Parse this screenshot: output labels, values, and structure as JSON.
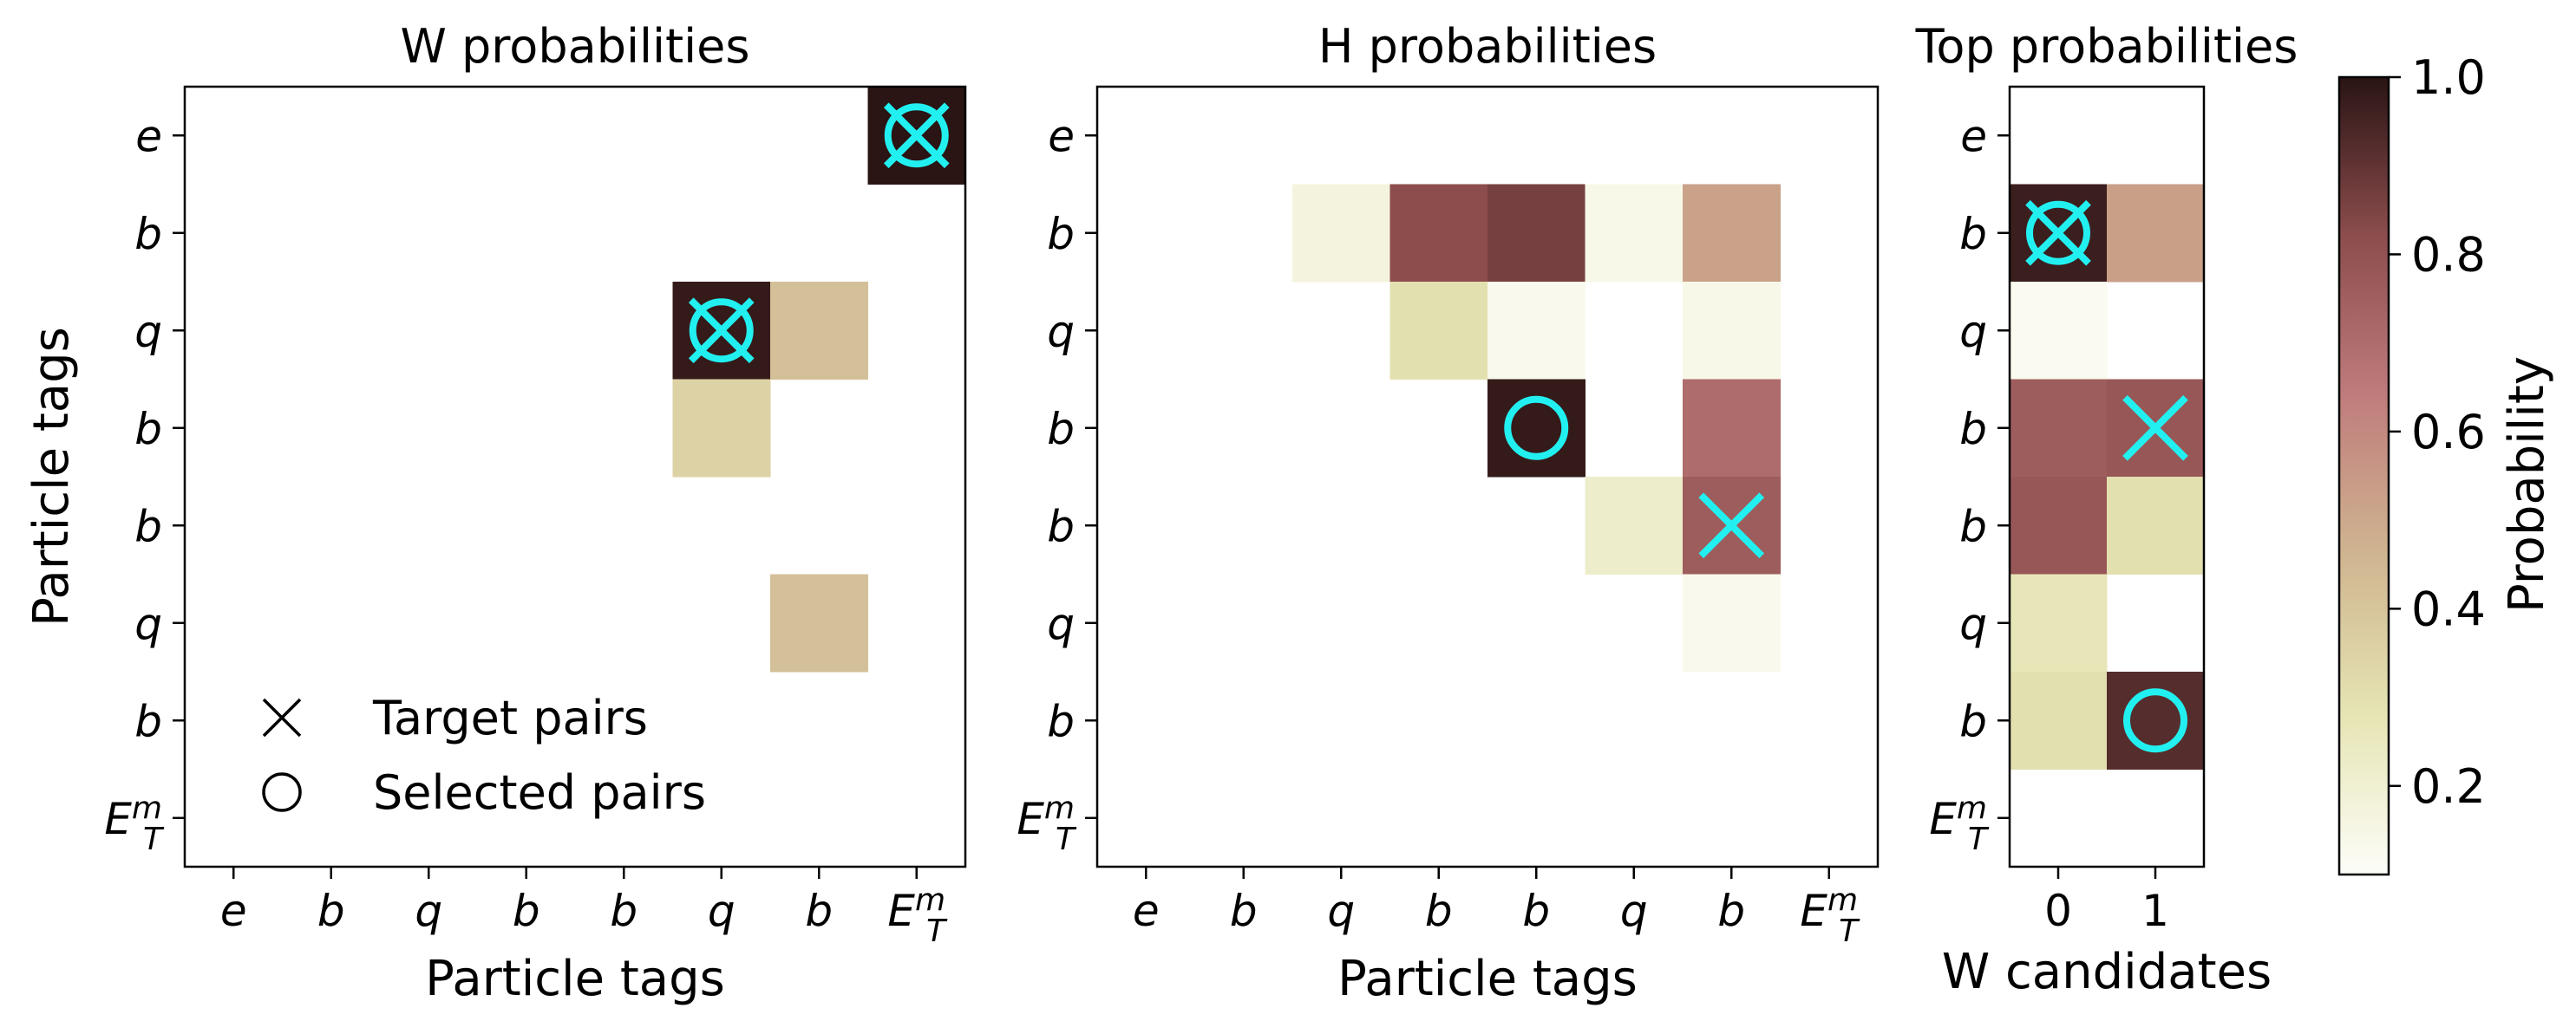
{
  "chart_data": [
    {
      "type": "heatmap",
      "title": "W probabilities",
      "xlabel": "Particle tags",
      "ylabel": "Particle tags",
      "x_tick_labels": [
        "e",
        "b",
        "q",
        "b",
        "b",
        "q",
        "b",
        "E_T^m"
      ],
      "y_tick_labels": [
        "e",
        "b",
        "q",
        "b",
        "b",
        "q",
        "b",
        "E_T^m"
      ],
      "cells": [
        {
          "row": 0,
          "col": 7,
          "value": 1.0
        },
        {
          "row": 2,
          "col": 5,
          "value": 0.98
        },
        {
          "row": 2,
          "col": 6,
          "value": 0.42
        },
        {
          "row": 3,
          "col": 5,
          "value": 0.35
        },
        {
          "row": 5,
          "col": 6,
          "value": 0.42
        }
      ],
      "target_pairs": [
        {
          "row": 0,
          "col": 7
        },
        {
          "row": 2,
          "col": 5
        }
      ],
      "selected_pairs": [
        {
          "row": 0,
          "col": 7
        },
        {
          "row": 2,
          "col": 5
        }
      ],
      "legend": {
        "position": "lower-left",
        "entries": [
          {
            "marker": "x",
            "label": "Target pairs"
          },
          {
            "marker": "o",
            "label": "Selected pairs"
          }
        ]
      }
    },
    {
      "type": "heatmap",
      "title": "H probabilities",
      "xlabel": "Particle tags",
      "ylabel": "",
      "x_tick_labels": [
        "e",
        "b",
        "q",
        "b",
        "b",
        "q",
        "b",
        "E_T^m"
      ],
      "y_tick_labels": [
        "e",
        "b",
        "q",
        "b",
        "b",
        "q",
        "b",
        "E_T^m"
      ],
      "cells": [
        {
          "row": 1,
          "col": 2,
          "value": 0.17
        },
        {
          "row": 1,
          "col": 3,
          "value": 0.82
        },
        {
          "row": 1,
          "col": 4,
          "value": 0.86
        },
        {
          "row": 1,
          "col": 5,
          "value": 0.14
        },
        {
          "row": 1,
          "col": 6,
          "value": 0.52
        },
        {
          "row": 2,
          "col": 3,
          "value": 0.3
        },
        {
          "row": 2,
          "col": 4,
          "value": 0.13
        },
        {
          "row": 2,
          "col": 6,
          "value": 0.14
        },
        {
          "row": 3,
          "col": 4,
          "value": 0.98
        },
        {
          "row": 3,
          "col": 6,
          "value": 0.7
        },
        {
          "row": 4,
          "col": 5,
          "value": 0.22
        },
        {
          "row": 4,
          "col": 6,
          "value": 0.76
        },
        {
          "row": 5,
          "col": 6,
          "value": 0.13
        }
      ],
      "target_pairs": [
        {
          "row": 4,
          "col": 6
        }
      ],
      "selected_pairs": [
        {
          "row": 3,
          "col": 4
        }
      ]
    },
    {
      "type": "heatmap",
      "title": "Top probabilities",
      "xlabel": "W candidates",
      "ylabel": "",
      "x_tick_labels": [
        "0",
        "1"
      ],
      "y_tick_labels": [
        "e",
        "b",
        "q",
        "b",
        "b",
        "q",
        "b",
        "E_T^m"
      ],
      "cells": [
        {
          "row": 1,
          "col": 0,
          "value": 0.97
        },
        {
          "row": 1,
          "col": 1,
          "value": 0.53
        },
        {
          "row": 2,
          "col": 0,
          "value": 0.12
        },
        {
          "row": 3,
          "col": 0,
          "value": 0.76
        },
        {
          "row": 3,
          "col": 1,
          "value": 0.78
        },
        {
          "row": 4,
          "col": 0,
          "value": 0.78
        },
        {
          "row": 4,
          "col": 1,
          "value": 0.3
        },
        {
          "row": 5,
          "col": 0,
          "value": 0.27
        },
        {
          "row": 6,
          "col": 0,
          "value": 0.3
        },
        {
          "row": 6,
          "col": 1,
          "value": 0.92
        }
      ],
      "target_pairs": [
        {
          "row": 1,
          "col": 0
        },
        {
          "row": 3,
          "col": 1
        }
      ],
      "selected_pairs": [
        {
          "row": 1,
          "col": 0
        },
        {
          "row": 6,
          "col": 1
        }
      ]
    }
  ],
  "colorbar": {
    "label": "Probability",
    "range": [
      0.1,
      1.0
    ],
    "ticks": [
      "0.2",
      "0.4",
      "0.6",
      "0.8",
      "1.0"
    ],
    "tick_values": [
      0.2,
      0.4,
      0.6,
      0.8,
      1.0
    ],
    "colors": [
      "#fdfdf8",
      "#e6e5b4",
      "#cfb590",
      "#c07c7c",
      "#8d4d4d",
      "#2a1414"
    ]
  },
  "marker_color": "#22f0f0"
}
